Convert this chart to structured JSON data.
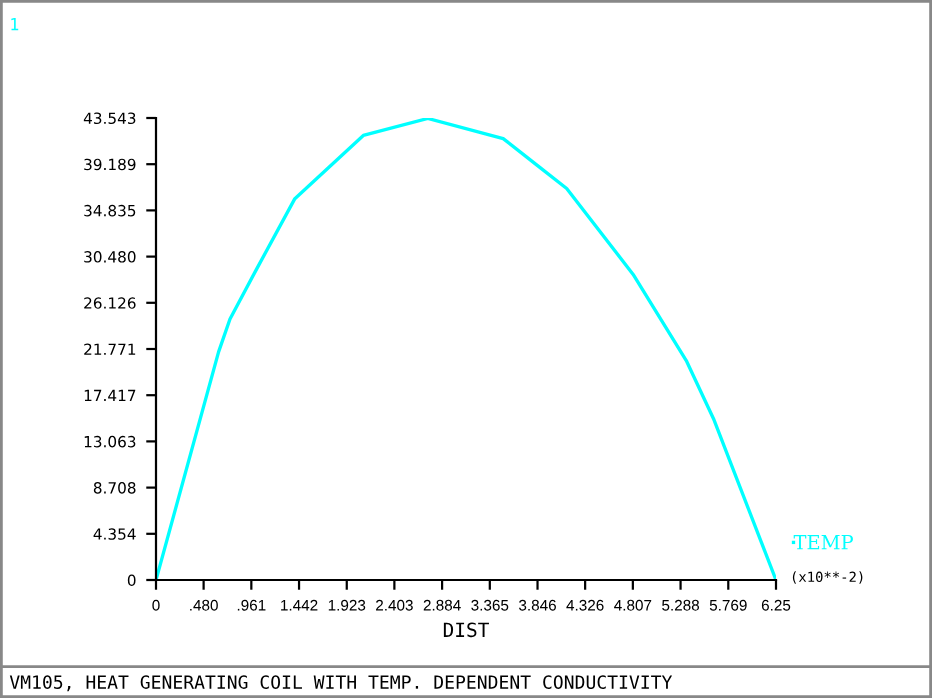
{
  "chart_data": {
    "type": "line",
    "xlabel": "DIST",
    "annotations": [
      "1",
      "(x10**-2)",
      "VM105, HEAT GENERATING COIL WITH TEMP. DEPENDENT CONDUCTIVITY"
    ],
    "series": [
      {
        "name": "TEMP",
        "color": "#00ffff",
        "x": [
          0,
          0.631,
          0.746,
          1.014,
          1.397,
          2.09,
          2.74,
          3.5,
          3.84,
          4.14,
          4.81,
          5.35,
          5.62,
          6.25
        ],
        "values": [
          0,
          21.5,
          24.6,
          29.3,
          35.9,
          41.9,
          43.5,
          41.6,
          39.1,
          36.9,
          28.8,
          20.6,
          15.2,
          0
        ]
      }
    ],
    "xlim": [
      0,
      6.25
    ],
    "xticks": [
      0,
      {
        "value": 0.48,
        "label": ".480"
      },
      {
        "value": 0.961,
        "label": ".961"
      },
      1.442,
      1.923,
      2.403,
      2.884,
      3.365,
      3.846,
      4.326,
      4.807,
      5.288,
      5.769,
      6.25
    ],
    "ylim": [
      0,
      43.543
    ],
    "yticks": [
      0,
      4.354,
      8.708,
      13.063,
      17.417,
      21.771,
      26.126,
      {
        "value": 30.48,
        "label": "30.480"
      },
      34.835,
      39.189,
      43.543
    ],
    "grid": false,
    "legend": "right",
    "marker": "none",
    "line_style": "solid"
  }
}
